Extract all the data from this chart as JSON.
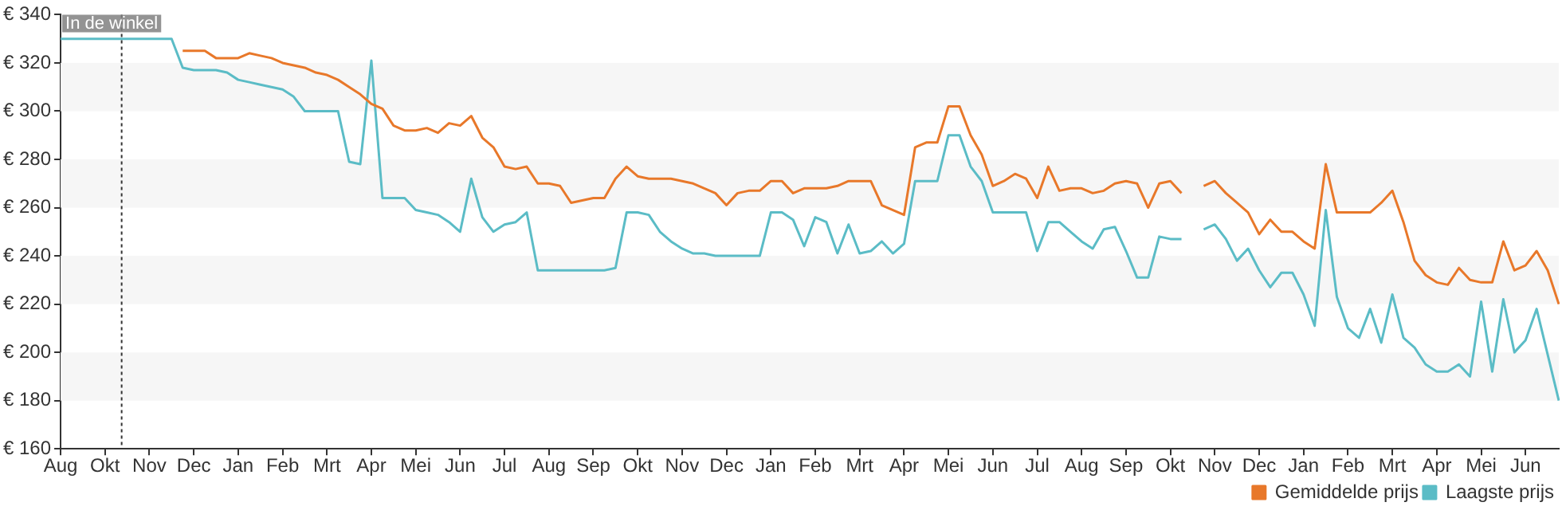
{
  "chart_data": {
    "type": "line",
    "categories": [
      "Aug",
      null,
      null,
      null,
      "Okt",
      null,
      null,
      null,
      "Nov",
      null,
      null,
      null,
      "Dec",
      null,
      null,
      null,
      "Jan",
      null,
      null,
      null,
      "Feb",
      null,
      null,
      null,
      "Mrt",
      null,
      null,
      null,
      "Apr",
      null,
      null,
      null,
      "Mei",
      null,
      null,
      null,
      "Jun",
      null,
      null,
      null,
      "Jul",
      null,
      null,
      null,
      "Aug",
      null,
      null,
      null,
      "Sep",
      null,
      null,
      null,
      "Okt",
      null,
      null,
      null,
      "Nov",
      null,
      null,
      null,
      "Dec",
      null,
      null,
      null,
      "Jan",
      null,
      null,
      null,
      "Feb",
      null,
      null,
      null,
      "Mrt",
      null,
      null,
      null,
      "Apr",
      null,
      null,
      null,
      "Mei",
      null,
      null,
      null,
      "Jun",
      null,
      null,
      null,
      "Jul",
      null,
      null,
      null,
      "Aug",
      null,
      null,
      null,
      "Sep",
      null,
      null,
      null,
      "Okt",
      null,
      null,
      null,
      "Nov",
      null,
      null,
      null,
      "Dec",
      null,
      null,
      null,
      "Jan",
      null,
      null,
      null,
      "Feb",
      null,
      null,
      null,
      "Mrt",
      null,
      null,
      null,
      "Apr",
      null,
      null,
      null,
      "Mei",
      null,
      null,
      null,
      "Jun",
      null,
      null,
      null
    ],
    "ylim": [
      160,
      340
    ],
    "yticks": [
      {
        "value": 160,
        "label": "€ 160"
      },
      {
        "value": 180,
        "label": "€ 180"
      },
      {
        "value": 200,
        "label": "€ 200"
      },
      {
        "value": 220,
        "label": "€ 220"
      },
      {
        "value": 240,
        "label": "€ 240"
      },
      {
        "value": 260,
        "label": "€ 260"
      },
      {
        "value": 280,
        "label": "€ 280"
      },
      {
        "value": 300,
        "label": "€ 300"
      },
      {
        "value": 320,
        "label": "€ 320"
      },
      {
        "value": 340,
        "label": "€ 340"
      }
    ],
    "legend": "bottom right",
    "line_style": "solid",
    "annotations": [
      "In de winkel"
    ],
    "series": [
      {
        "name": "Gemiddelde prijs",
        "color": "#e8782a",
        "values": [
          null,
          null,
          null,
          null,
          null,
          null,
          null,
          null,
          null,
          null,
          null,
          325,
          325,
          325,
          322,
          322,
          322,
          324,
          323,
          322,
          320,
          319,
          318,
          316,
          315,
          313,
          310,
          307,
          303,
          301,
          294,
          292,
          292,
          293,
          291,
          295,
          294,
          298,
          289,
          285,
          277,
          276,
          277,
          270,
          270,
          269,
          262,
          263,
          264,
          264,
          272,
          277,
          273,
          272,
          272,
          272,
          271,
          270,
          268,
          266,
          261,
          266,
          267,
          267,
          271,
          271,
          266,
          268,
          268,
          268,
          269,
          271,
          271,
          271,
          261,
          259,
          257,
          285,
          287,
          287,
          302,
          302,
          290,
          282,
          269,
          271,
          274,
          272,
          264,
          277,
          267,
          268,
          268,
          266,
          267,
          270,
          271,
          270,
          260,
          270,
          271,
          266,
          null,
          269,
          271,
          266,
          262,
          258,
          249,
          255,
          250,
          250,
          246,
          243,
          278,
          258,
          258,
          258,
          258,
          262,
          267,
          254,
          238,
          232,
          229,
          228,
          235,
          230,
          229,
          229,
          246,
          234,
          236,
          242,
          234,
          220
        ]
      },
      {
        "name": "Laagste prijs",
        "color": "#5bbcc6",
        "values": [
          330,
          330,
          330,
          330,
          330,
          330,
          330,
          330,
          330,
          330,
          330,
          318,
          317,
          317,
          317,
          316,
          313,
          312,
          311,
          310,
          309,
          306,
          300,
          300,
          300,
          300,
          279,
          278,
          321,
          264,
          264,
          264,
          259,
          258,
          257,
          254,
          250,
          272,
          256,
          250,
          253,
          254,
          258,
          234,
          234,
          234,
          234,
          234,
          234,
          234,
          235,
          258,
          258,
          257,
          250,
          246,
          243,
          241,
          241,
          240,
          240,
          240,
          240,
          240,
          258,
          258,
          255,
          244,
          256,
          254,
          241,
          253,
          241,
          242,
          246,
          241,
          245,
          271,
          271,
          271,
          290,
          290,
          277,
          271,
          258,
          258,
          258,
          258,
          242,
          254,
          254,
          250,
          246,
          243,
          251,
          252,
          242,
          231,
          231,
          248,
          247,
          247,
          null,
          251,
          253,
          247,
          238,
          243,
          234,
          227,
          233,
          233,
          224,
          211,
          259,
          223,
          210,
          206,
          218,
          204,
          224,
          206,
          202,
          195,
          192,
          192,
          195,
          190,
          221,
          192,
          222,
          200,
          205,
          218,
          199,
          180
        ]
      }
    ]
  }
}
